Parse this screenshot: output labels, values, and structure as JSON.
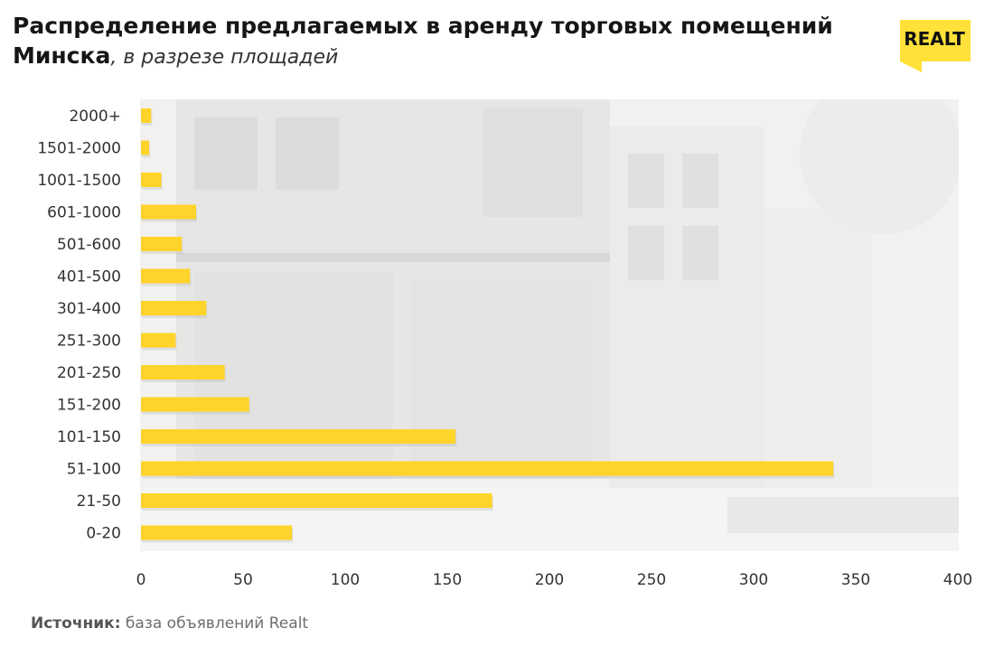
{
  "header": {
    "title_main": "Распределение предлагаемых в аренду торговых помещений Минска",
    "title_sub": ", в разрезе площадей"
  },
  "logo": {
    "text": "REALT",
    "color": "#FFE139"
  },
  "source": {
    "label": "Источник:",
    "text": " база объявлений Realt"
  },
  "colors": {
    "bar": "#FFD42A",
    "background_photo": "#EEEEEE"
  },
  "chart_data": {
    "type": "bar",
    "orientation": "horizontal",
    "title": "Распределение предлагаемых в аренду торговых помещений Минска, в разрезе площадей",
    "xlabel": "",
    "ylabel": "",
    "categories": [
      "2000+",
      "1501-2000",
      "1001-1500",
      "601-1000",
      "501-600",
      "401-500",
      "301-400",
      "251-300",
      "201-250",
      "151-200",
      "101-150",
      "51-100",
      "21-50",
      "0-20"
    ],
    "values": [
      5,
      4,
      10,
      27,
      20,
      24,
      32,
      17,
      41,
      53,
      154,
      339,
      172,
      74
    ],
    "xlim": [
      0,
      400
    ],
    "xticks": [
      0,
      50,
      100,
      150,
      200,
      250,
      300,
      350,
      400
    ],
    "grid": false,
    "legend": "none"
  }
}
